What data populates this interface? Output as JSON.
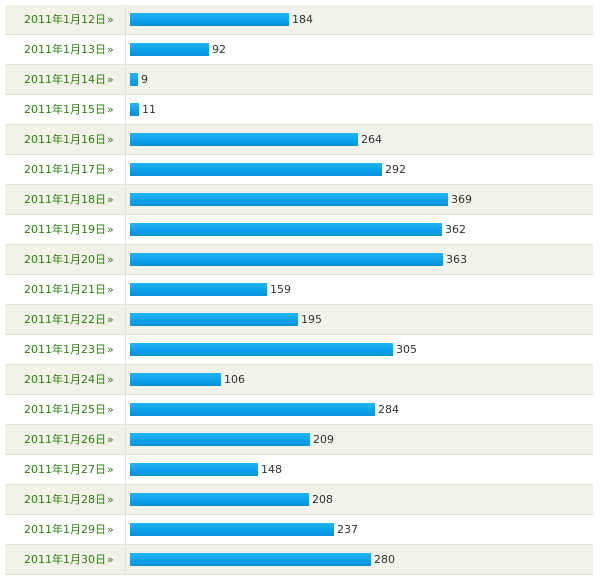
{
  "chart_data": {
    "type": "bar",
    "orientation": "horizontal",
    "categories": [
      "2011年1月12日",
      "2011年1月13日",
      "2011年1月14日",
      "2011年1月15日",
      "2011年1月16日",
      "2011年1月17日",
      "2011年1月18日",
      "2011年1月19日",
      "2011年1月20日",
      "2011年1月21日",
      "2011年1月22日",
      "2011年1月23日",
      "2011年1月24日",
      "2011年1月25日",
      "2011年1月26日",
      "2011年1月27日",
      "2011年1月28日",
      "2011年1月29日",
      "2011年1月30日"
    ],
    "values": [
      184,
      92,
      9,
      11,
      264,
      292,
      369,
      362,
      363,
      159,
      195,
      305,
      106,
      284,
      209,
      148,
      208,
      237,
      280
    ],
    "link_suffix": "»",
    "xlim": [
      0,
      369
    ],
    "colors": {
      "bar": "#0aa0ea",
      "date_text": "#2e7d12",
      "row_alt": "#f2f2ea"
    },
    "grid": false,
    "legend": "none"
  }
}
